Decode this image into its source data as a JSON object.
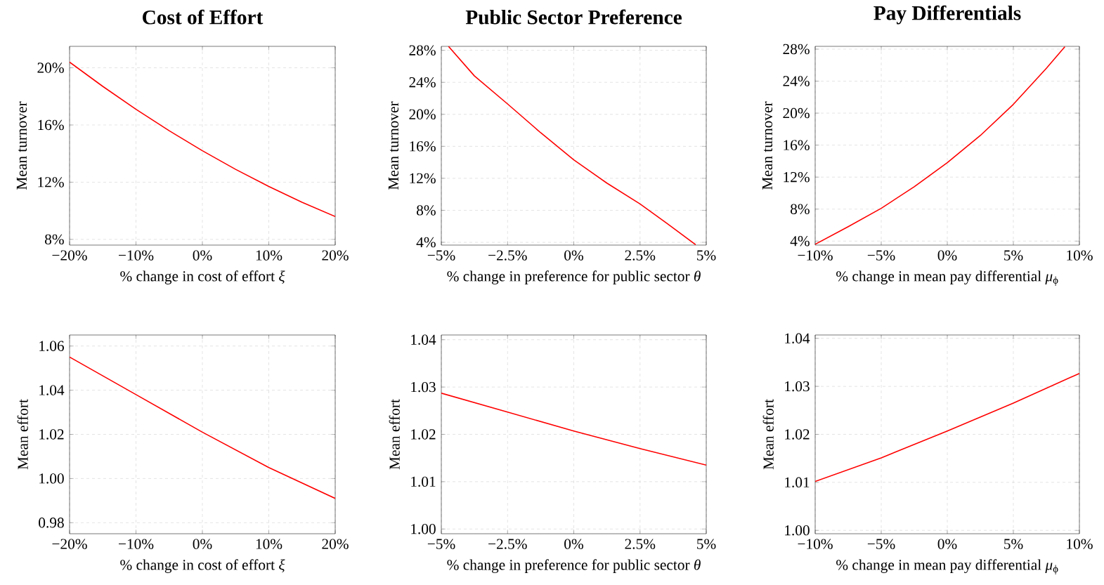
{
  "chart_data": [
    {
      "type": "line",
      "title": "Cost of Effort",
      "xlabel": "% change in cost of effort *ξ*",
      "ylabel": "Mean turnover",
      "grid": true,
      "xlim": [
        -20,
        20
      ],
      "ylim": [
        7.6,
        21.5
      ],
      "xticks": [
        {
          "value": -20,
          "label": "−20%"
        },
        {
          "value": -10,
          "label": "−10%"
        },
        {
          "value": 0,
          "label": "0%"
        },
        {
          "value": 10,
          "label": "10%"
        },
        {
          "value": 20,
          "label": "20%"
        }
      ],
      "yticks": [
        {
          "value": 8,
          "label": "8%"
        },
        {
          "value": 12,
          "label": "12%"
        },
        {
          "value": 16,
          "label": "16%"
        },
        {
          "value": 20,
          "label": "20%"
        }
      ],
      "series": [
        {
          "color": "#ff0000",
          "x": [
            -20,
            -15,
            -10,
            -5,
            0,
            5,
            10,
            15,
            20
          ],
          "values": [
            20.4,
            18.7,
            17.1,
            15.6,
            14.2,
            12.9,
            11.7,
            10.6,
            9.6
          ]
        }
      ]
    },
    {
      "type": "line",
      "title": "Public Sector Preference",
      "xlabel": "% change in preference for public sector *θ*",
      "ylabel": "Mean turnover",
      "grid": true,
      "xlim": [
        -5,
        5
      ],
      "ylim": [
        3.65,
        28.5
      ],
      "xticks": [
        {
          "value": -5,
          "label": "−5%"
        },
        {
          "value": -2.5,
          "label": "−2.5%"
        },
        {
          "value": 0,
          "label": "0%"
        },
        {
          "value": 2.5,
          "label": "2.5%"
        },
        {
          "value": 5,
          "label": "5%"
        }
      ],
      "yticks": [
        {
          "value": 4,
          "label": "4%"
        },
        {
          "value": 8,
          "label": "8%"
        },
        {
          "value": 12,
          "label": "12%"
        },
        {
          "value": 16,
          "label": "16%"
        },
        {
          "value": 20,
          "label": "20%"
        },
        {
          "value": 24,
          "label": "24%"
        },
        {
          "value": 28,
          "label": "28%"
        }
      ],
      "series": [
        {
          "color": "#ff0000",
          "x": [
            -4.73,
            -3.75,
            -2.5,
            -1.25,
            0,
            1.25,
            2.5,
            3.5,
            4.6
          ],
          "values": [
            28.5,
            24.8,
            21.3,
            17.7,
            14.3,
            11.4,
            8.8,
            6.4,
            3.7
          ]
        }
      ]
    },
    {
      "type": "line",
      "title": "Pay Differentials",
      "xlabel": "% change in mean pay differential *μ*$_{ϕ}$",
      "ylabel": "Mean turnover",
      "grid": true,
      "xlim": [
        -10,
        10
      ],
      "ylim": [
        3.5,
        28.35
      ],
      "xticks": [
        {
          "value": -10,
          "label": "−10%"
        },
        {
          "value": -5,
          "label": "−5%"
        },
        {
          "value": 0,
          "label": "0%"
        },
        {
          "value": 5,
          "label": "5%"
        },
        {
          "value": 10,
          "label": "10%"
        }
      ],
      "yticks": [
        {
          "value": 4,
          "label": "4%"
        },
        {
          "value": 8,
          "label": "8%"
        },
        {
          "value": 12,
          "label": "12%"
        },
        {
          "value": 16,
          "label": "16%"
        },
        {
          "value": 20,
          "label": "20%"
        },
        {
          "value": 24,
          "label": "24%"
        },
        {
          "value": 28,
          "label": "28%"
        }
      ],
      "series": [
        {
          "color": "#ff0000",
          "x": [
            -10,
            -7.5,
            -5,
            -2.5,
            0,
            2.5,
            5,
            7.5,
            8.9
          ],
          "values": [
            3.6,
            5.8,
            8.1,
            10.8,
            13.8,
            17.2,
            21.1,
            25.6,
            28.3
          ]
        }
      ]
    },
    {
      "type": "line",
      "xlabel": "% change in cost of effort *ξ*",
      "ylabel": "Mean effort",
      "grid": true,
      "xlim": [
        -20,
        20
      ],
      "ylim": [
        0.975,
        1.065
      ],
      "xticks": [
        {
          "value": -20,
          "label": "−20%"
        },
        {
          "value": -10,
          "label": "−10%"
        },
        {
          "value": 0,
          "label": "0%"
        },
        {
          "value": 10,
          "label": "10%"
        },
        {
          "value": 20,
          "label": "20%"
        }
      ],
      "yticks": [
        {
          "value": 0.98,
          "label": "0.98"
        },
        {
          "value": 1.0,
          "label": "1.00"
        },
        {
          "value": 1.02,
          "label": "1.02"
        },
        {
          "value": 1.04,
          "label": "1.04"
        },
        {
          "value": 1.06,
          "label": "1.06"
        }
      ],
      "series": [
        {
          "color": "#ff0000",
          "x": [
            -20,
            -10,
            0,
            10,
            20
          ],
          "values": [
            1.055,
            1.038,
            1.021,
            1.005,
            0.991
          ]
        }
      ]
    },
    {
      "type": "line",
      "xlabel": "% change in preference for public sector *θ*",
      "ylabel": "Mean effort",
      "grid": true,
      "xlim": [
        -5,
        5
      ],
      "ylim": [
        0.999,
        1.041
      ],
      "xticks": [
        {
          "value": -5,
          "label": "−5%"
        },
        {
          "value": -2.5,
          "label": "−2.5%"
        },
        {
          "value": 0,
          "label": "0%"
        },
        {
          "value": 2.5,
          "label": "2.5%"
        },
        {
          "value": 5,
          "label": "5%"
        }
      ],
      "yticks": [
        {
          "value": 1.0,
          "label": "1.00"
        },
        {
          "value": 1.01,
          "label": "1.01"
        },
        {
          "value": 1.02,
          "label": "1.02"
        },
        {
          "value": 1.03,
          "label": "1.03"
        },
        {
          "value": 1.04,
          "label": "1.04"
        }
      ],
      "series": [
        {
          "color": "#ff0000",
          "x": [
            -5,
            -2.5,
            0,
            2.5,
            5
          ],
          "values": [
            1.0287,
            1.0247,
            1.0207,
            1.017,
            1.0135
          ]
        }
      ]
    },
    {
      "type": "line",
      "xlabel": "% change in mean pay differential *μ*$_{ϕ}$",
      "ylabel": "Mean effort",
      "grid": true,
      "xlim": [
        -10,
        10
      ],
      "ylim": [
        0.9993,
        1.0407
      ],
      "xticks": [
        {
          "value": -10,
          "label": "−10%"
        },
        {
          "value": -5,
          "label": "−5%"
        },
        {
          "value": 0,
          "label": "0%"
        },
        {
          "value": 5,
          "label": "5%"
        },
        {
          "value": 10,
          "label": "10%"
        }
      ],
      "yticks": [
        {
          "value": 1.0,
          "label": "1.00"
        },
        {
          "value": 1.01,
          "label": "1.01"
        },
        {
          "value": 1.02,
          "label": "1.02"
        },
        {
          "value": 1.03,
          "label": "1.03"
        },
        {
          "value": 1.04,
          "label": "1.04"
        }
      ],
      "series": [
        {
          "color": "#ff0000",
          "x": [
            -10,
            -5,
            0,
            5,
            10
          ],
          "values": [
            1.0102,
            1.0151,
            1.0207,
            1.0265,
            1.0327
          ]
        }
      ]
    }
  ]
}
